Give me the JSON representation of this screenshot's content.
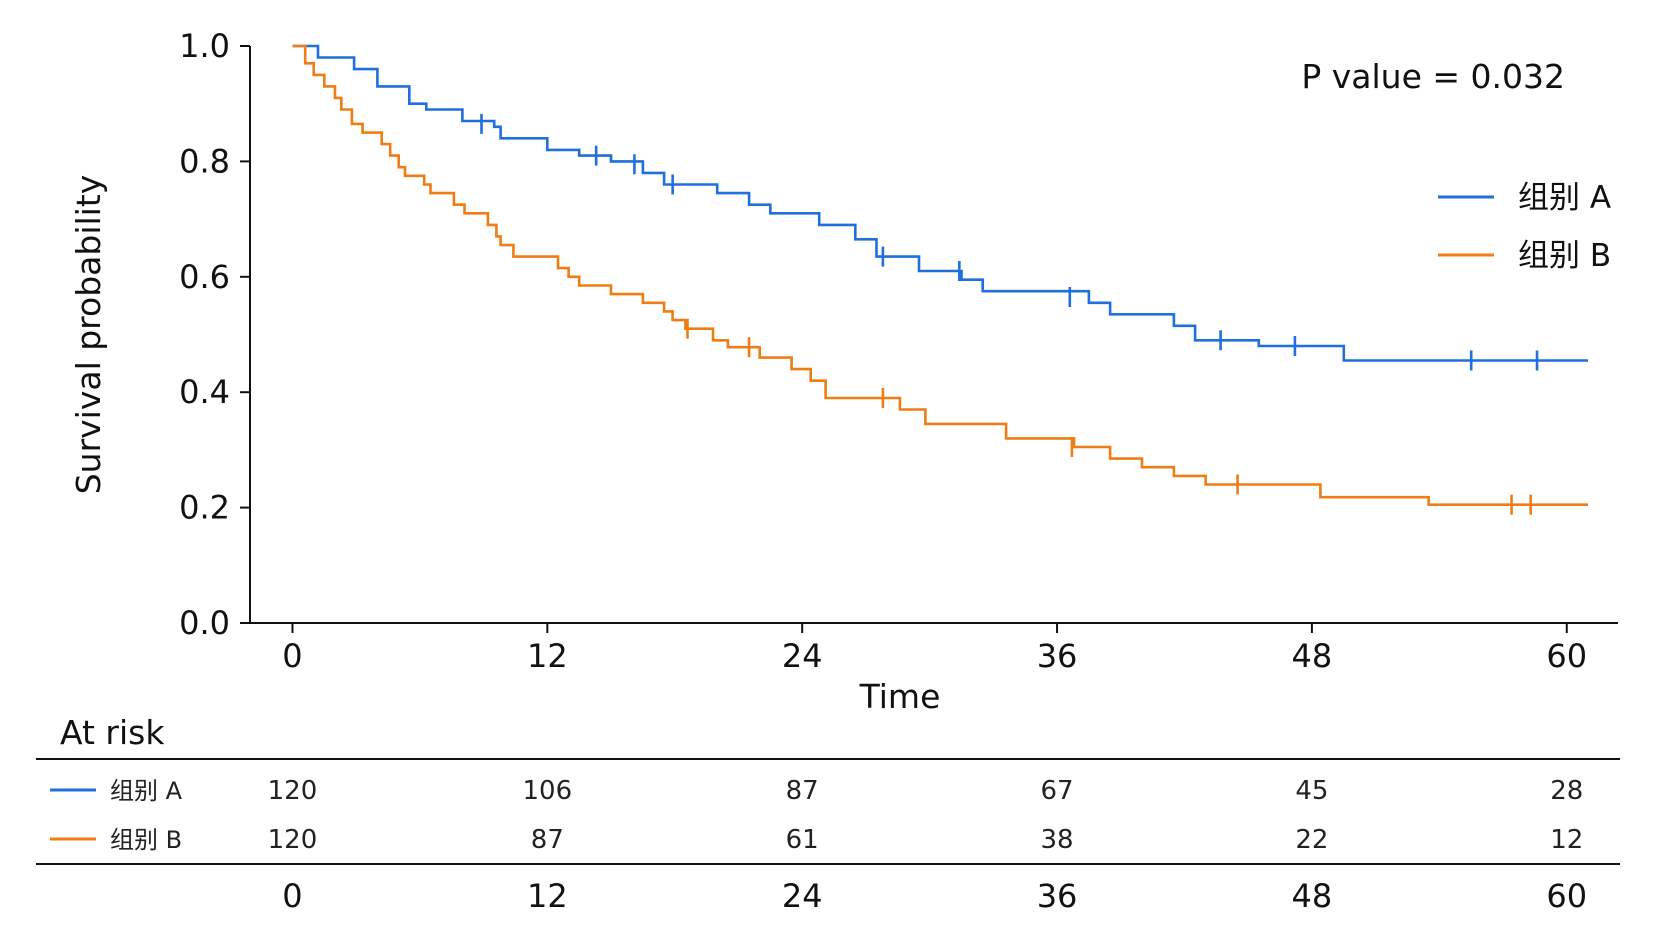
{
  "chart_data": {
    "type": "line",
    "subtype": "kaplan-meier",
    "title": "",
    "xlabel": "Time",
    "ylabel": "Survival probability",
    "xlim": [
      -2,
      61
    ],
    "ylim": [
      0,
      1.0
    ],
    "x_ticks": [
      "0",
      "12",
      "24",
      "36",
      "48",
      "60"
    ],
    "y_ticks": [
      "0.0",
      "0.2",
      "0.4",
      "0.6",
      "0.8",
      "1.0"
    ],
    "annotation": "P value = 0.032",
    "legend_position": "right",
    "grid": false,
    "series": [
      {
        "name": "组别 A",
        "color": "#1f6fdc",
        "steps": [
          [
            0,
            1.0
          ],
          [
            1.2,
            0.98
          ],
          [
            2.9,
            0.96
          ],
          [
            4.0,
            0.93
          ],
          [
            5.5,
            0.9
          ],
          [
            6.3,
            0.89
          ],
          [
            8.0,
            0.87
          ],
          [
            9.5,
            0.86
          ],
          [
            9.8,
            0.84
          ],
          [
            12.0,
            0.82
          ],
          [
            13.5,
            0.81
          ],
          [
            15.0,
            0.8
          ],
          [
            16.5,
            0.78
          ],
          [
            17.5,
            0.76
          ],
          [
            20.0,
            0.745
          ],
          [
            21.5,
            0.725
          ],
          [
            22.5,
            0.71
          ],
          [
            24.8,
            0.69
          ],
          [
            26.5,
            0.665
          ],
          [
            27.5,
            0.635
          ],
          [
            29.5,
            0.61
          ],
          [
            31.5,
            0.595
          ],
          [
            32.5,
            0.575
          ],
          [
            37.5,
            0.555
          ],
          [
            38.5,
            0.535
          ],
          [
            41.5,
            0.515
          ],
          [
            42.5,
            0.49
          ],
          [
            45.5,
            0.48
          ],
          [
            49.5,
            0.455
          ],
          [
            61,
            0.455
          ]
        ],
        "censors": [
          [
            8.9,
            0.865
          ],
          [
            14.3,
            0.81
          ],
          [
            16.1,
            0.795
          ],
          [
            17.9,
            0.76
          ],
          [
            27.8,
            0.635
          ],
          [
            31.4,
            0.61
          ],
          [
            36.6,
            0.565
          ],
          [
            43.7,
            0.49
          ],
          [
            47.2,
            0.48
          ],
          [
            55.5,
            0.455
          ],
          [
            58.6,
            0.455
          ]
        ]
      },
      {
        "name": "组别 B",
        "color": "#f07d14",
        "steps": [
          [
            0,
            1.0
          ],
          [
            0.6,
            0.97
          ],
          [
            1.0,
            0.95
          ],
          [
            1.5,
            0.93
          ],
          [
            2.0,
            0.91
          ],
          [
            2.3,
            0.89
          ],
          [
            2.8,
            0.865
          ],
          [
            3.3,
            0.85
          ],
          [
            4.2,
            0.83
          ],
          [
            4.6,
            0.81
          ],
          [
            5.0,
            0.79
          ],
          [
            5.3,
            0.775
          ],
          [
            6.2,
            0.76
          ],
          [
            6.5,
            0.745
          ],
          [
            7.6,
            0.725
          ],
          [
            8.1,
            0.71
          ],
          [
            9.2,
            0.69
          ],
          [
            9.6,
            0.67
          ],
          [
            9.8,
            0.655
          ],
          [
            10.4,
            0.635
          ],
          [
            12.5,
            0.615
          ],
          [
            13.0,
            0.6
          ],
          [
            13.5,
            0.585
          ],
          [
            15.0,
            0.57
          ],
          [
            16.5,
            0.555
          ],
          [
            17.5,
            0.54
          ],
          [
            17.9,
            0.525
          ],
          [
            18.5,
            0.51
          ],
          [
            19.8,
            0.49
          ],
          [
            20.5,
            0.478
          ],
          [
            22.0,
            0.46
          ],
          [
            23.5,
            0.44
          ],
          [
            24.4,
            0.42
          ],
          [
            25.1,
            0.39
          ],
          [
            28.6,
            0.37
          ],
          [
            29.8,
            0.345
          ],
          [
            33.6,
            0.32
          ],
          [
            36.8,
            0.305
          ],
          [
            38.5,
            0.285
          ],
          [
            40.0,
            0.27
          ],
          [
            41.5,
            0.255
          ],
          [
            43.0,
            0.24
          ],
          [
            48.4,
            0.218
          ],
          [
            53.5,
            0.205
          ],
          [
            61,
            0.205
          ]
        ],
        "censors": [
          [
            18.6,
            0.51
          ],
          [
            21.5,
            0.478
          ],
          [
            27.8,
            0.39
          ],
          [
            36.7,
            0.305
          ],
          [
            44.5,
            0.24
          ],
          [
            57.4,
            0.205
          ],
          [
            58.3,
            0.205
          ]
        ]
      }
    ],
    "risk_table": {
      "title": "At risk",
      "times": [
        "0",
        "12",
        "24",
        "36",
        "48",
        "60"
      ],
      "rows": [
        {
          "name": "组别 A",
          "color": "#1f6fdc",
          "values": [
            "120",
            "106",
            "87",
            "67",
            "45",
            "28"
          ]
        },
        {
          "name": "组别 B",
          "color": "#f07d14",
          "values": [
            "120",
            "87",
            "61",
            "38",
            "22",
            "12"
          ]
        }
      ]
    }
  }
}
